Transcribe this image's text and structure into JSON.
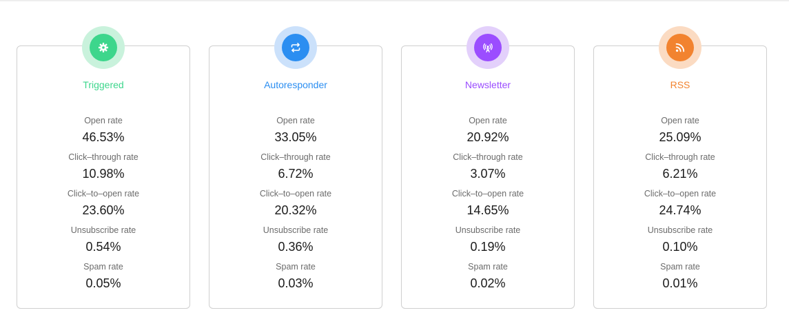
{
  "cards": [
    {
      "title": "Triggered",
      "icon": "gear-icon",
      "accent": "#3dd68c",
      "ring": "#c9f2dc",
      "metrics": [
        {
          "label": "Open rate",
          "value": "46.53%"
        },
        {
          "label": "Click–through rate",
          "value": "10.98%"
        },
        {
          "label": "Click–to–open rate",
          "value": "23.60%"
        },
        {
          "label": "Unsubscribe rate",
          "value": "0.54%"
        },
        {
          "label": "Spam rate",
          "value": "0.05%"
        }
      ]
    },
    {
      "title": "Autoresponder",
      "icon": "repeat-arrows-icon",
      "accent": "#2b8ef1",
      "ring": "#cbe1fb",
      "metrics": [
        {
          "label": "Open rate",
          "value": "33.05%"
        },
        {
          "label": "Click–through rate",
          "value": "6.72%"
        },
        {
          "label": "Click–to–open rate",
          "value": "20.32%"
        },
        {
          "label": "Unsubscribe rate",
          "value": "0.36%"
        },
        {
          "label": "Spam rate",
          "value": "0.03%"
        }
      ]
    },
    {
      "title": "Newsletter",
      "icon": "broadcast-antenna-icon",
      "accent": "#9b4dff",
      "ring": "#e3d0fb",
      "metrics": [
        {
          "label": "Open rate",
          "value": "20.92%"
        },
        {
          "label": "Click–through rate",
          "value": "3.07%"
        },
        {
          "label": "Click–to–open rate",
          "value": "14.65%"
        },
        {
          "label": "Unsubscribe rate",
          "value": "0.19%"
        },
        {
          "label": "Spam rate",
          "value": "0.02%"
        }
      ]
    },
    {
      "title": "RSS",
      "icon": "rss-feed-icon",
      "accent": "#f2832f",
      "ring": "#fbdbc2",
      "metrics": [
        {
          "label": "Open rate",
          "value": "25.09%"
        },
        {
          "label": "Click–through rate",
          "value": "6.21%"
        },
        {
          "label": "Click–to–open rate",
          "value": "24.74%"
        },
        {
          "label": "Unsubscribe rate",
          "value": "0.10%"
        },
        {
          "label": "Spam rate",
          "value": "0.01%"
        }
      ]
    }
  ]
}
